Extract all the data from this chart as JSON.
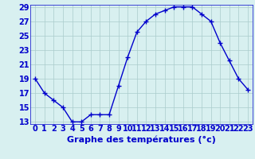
{
  "hours": [
    0,
    1,
    2,
    3,
    4,
    5,
    6,
    7,
    8,
    9,
    10,
    11,
    12,
    13,
    14,
    15,
    16,
    17,
    18,
    19,
    20,
    21,
    22,
    23
  ],
  "temperatures": [
    19,
    17,
    16,
    15,
    13,
    13,
    14,
    14,
    14,
    18,
    22,
    25.5,
    27,
    28,
    28.5,
    29,
    29,
    29,
    28,
    27,
    24,
    21.5,
    19,
    17.5
  ],
  "line_color": "#0000cc",
  "marker": "+",
  "marker_size": 4,
  "background_color": "#d8f0f0",
  "grid_color": "#aacccc",
  "xlabel": "Graphe des températures (°c)",
  "xlabel_color": "#0000cc",
  "ylim": [
    13,
    29
  ],
  "yticks": [
    13,
    15,
    17,
    19,
    21,
    23,
    25,
    27,
    29
  ],
  "xlim": [
    -0.5,
    23.5
  ],
  "tick_fontsize": 7,
  "xlabel_fontsize": 8,
  "linewidth": 1.0
}
